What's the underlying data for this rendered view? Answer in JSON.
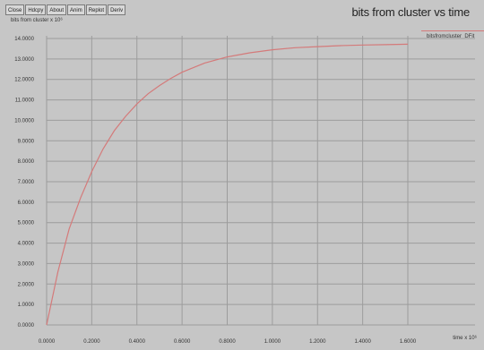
{
  "toolbar": {
    "buttons": [
      "Close",
      "Hdcpy",
      "About",
      "Anim",
      "Replot",
      "Deriv"
    ]
  },
  "colors": {
    "background": "#c6c6c6",
    "grid": "#9c9c9c",
    "series": "#d47a7a"
  },
  "chart_data": {
    "type": "line",
    "title": "bits from cluster vs time",
    "ylabel": "bits from cluster x 10⁶",
    "xlabel": "time x 10⁶",
    "xlim": [
      0,
      1.6
    ],
    "ylim": [
      0,
      14
    ],
    "grid": true,
    "legend_position": "top-right",
    "x_ticks": [
      "0.0000",
      "0.2000",
      "0.4000",
      "0.6000",
      "0.8000",
      "1.0000",
      "1.2000",
      "1.4000",
      "1.6000"
    ],
    "y_ticks": [
      "0.0000",
      "1.0000",
      "2.0000",
      "3.0000",
      "4.0000",
      "5.0000",
      "6.0000",
      "7.0000",
      "8.0000",
      "9.0000",
      "10.0000",
      "11.0000",
      "12.0000",
      "13.0000",
      "14.0000"
    ],
    "series": [
      {
        "name": "bitsfromcluster_DFit",
        "color": "#d47a7a",
        "points": [
          [
            0.0,
            0.0
          ],
          [
            0.05,
            2.6
          ],
          [
            0.1,
            4.7
          ],
          [
            0.15,
            6.2
          ],
          [
            0.2,
            7.5
          ],
          [
            0.25,
            8.6
          ],
          [
            0.3,
            9.5
          ],
          [
            0.35,
            10.2
          ],
          [
            0.4,
            10.8
          ],
          [
            0.45,
            11.3
          ],
          [
            0.5,
            11.7
          ],
          [
            0.55,
            12.05
          ],
          [
            0.6,
            12.35
          ],
          [
            0.7,
            12.8
          ],
          [
            0.8,
            13.1
          ],
          [
            0.9,
            13.3
          ],
          [
            1.0,
            13.45
          ],
          [
            1.1,
            13.55
          ],
          [
            1.2,
            13.6
          ],
          [
            1.3,
            13.65
          ],
          [
            1.4,
            13.68
          ],
          [
            1.5,
            13.7
          ],
          [
            1.6,
            13.72
          ]
        ]
      }
    ]
  }
}
